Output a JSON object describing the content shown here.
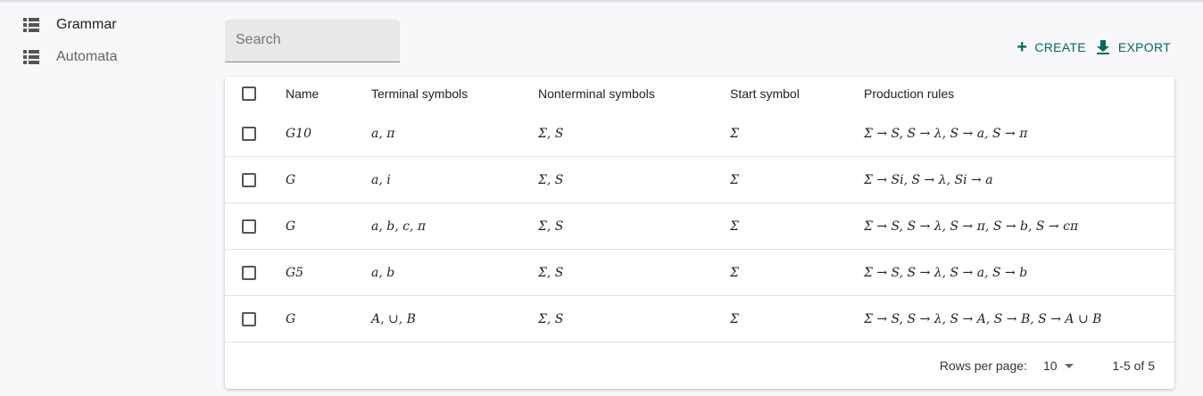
{
  "sidebar": {
    "items": [
      {
        "label": "Grammar",
        "icon": "list-icon"
      },
      {
        "label": "Automata",
        "icon": "list-icon"
      }
    ]
  },
  "search": {
    "placeholder": "Search",
    "value": ""
  },
  "toolbar": {
    "create_label": "CREATE",
    "export_label": "EXPORT",
    "accent": "#00695c"
  },
  "table": {
    "columns": [
      "Name",
      "Terminal symbols",
      "Nonterminal symbols",
      "Start symbol",
      "Production rules"
    ],
    "rows": [
      {
        "name": "G10",
        "terminals": "a, π",
        "nonterminals": "Σ, S",
        "start": "Σ",
        "rules": "Σ → S, S → λ, S → a, S → π"
      },
      {
        "name": "G",
        "terminals": "a, i",
        "nonterminals": "Σ, S",
        "start": "Σ",
        "rules": "Σ → Si, S → λ, Si → a"
      },
      {
        "name": "G",
        "terminals": "a, b, c, π",
        "nonterminals": "Σ, S",
        "start": "Σ",
        "rules": "Σ → S, S → λ, S → π, S → b, S → cπ"
      },
      {
        "name": "G5",
        "terminals": "a, b",
        "nonterminals": "Σ, S",
        "start": "Σ",
        "rules": "Σ → S, S → λ, S → a, S → b"
      },
      {
        "name": "G",
        "terminals": "A, ∪, B",
        "nonterminals": "Σ, S",
        "start": "Σ",
        "rules": "Σ → S, S → λ, S → A, S → B, S → A ∪ B"
      }
    ]
  },
  "pagination": {
    "rows_per_page_label": "Rows per page:",
    "rows_per_page": "10",
    "range": "1-5 of 5"
  }
}
